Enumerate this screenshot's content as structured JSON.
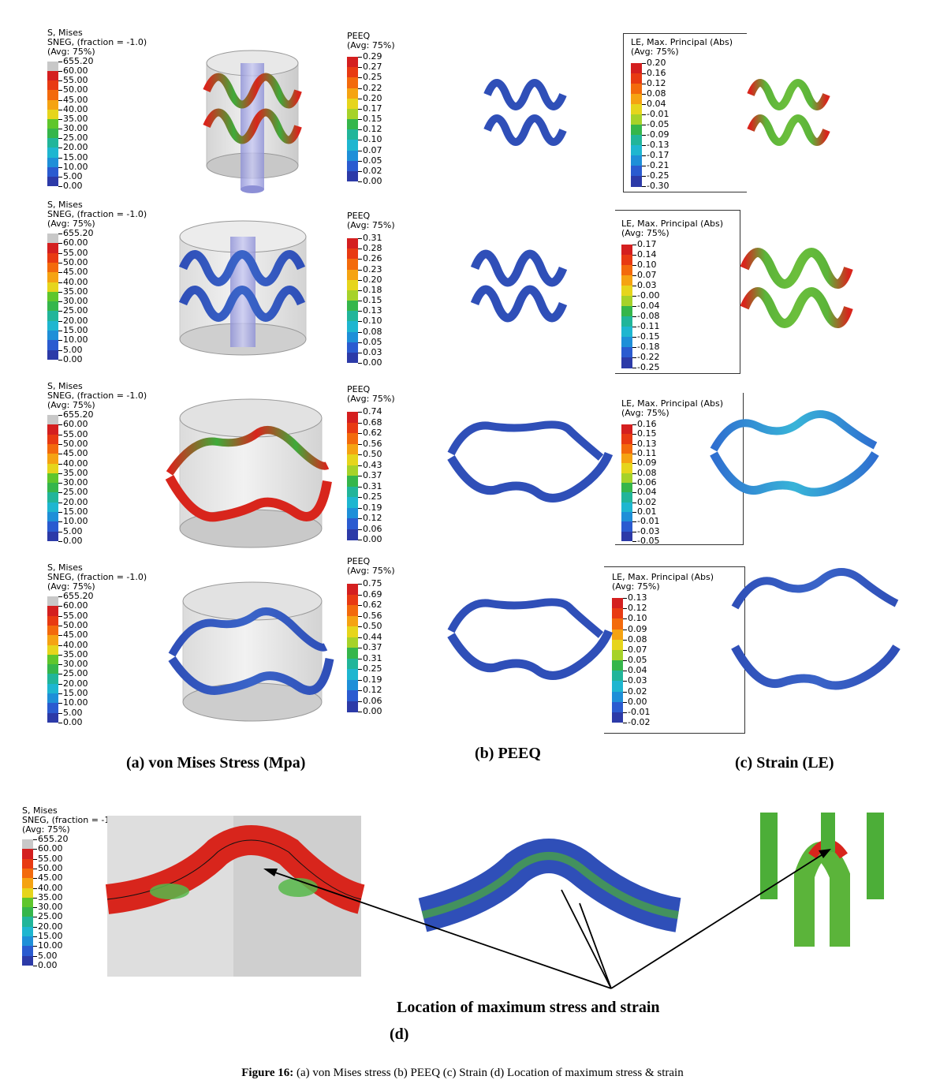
{
  "legend_mises": {
    "title_lines": [
      "S, Mises",
      "SNEG, (fraction = -1.0)",
      "(Avg: 75%)"
    ],
    "values": [
      "655.20",
      "60.00",
      "55.00",
      "50.00",
      "45.00",
      "40.00",
      "35.00",
      "30.00",
      "25.00",
      "20.00",
      "15.00",
      "10.00",
      "5.00",
      "0.00"
    ]
  },
  "legend_peeq": [
    {
      "title_lines": [
        "PEEQ",
        "(Avg: 75%)"
      ],
      "values": [
        "0.29",
        "0.27",
        "0.25",
        "0.22",
        "0.20",
        "0.17",
        "0.15",
        "0.12",
        "0.10",
        "0.07",
        "0.05",
        "0.02",
        "0.00"
      ]
    },
    {
      "title_lines": [
        "PEEQ",
        "(Avg: 75%)"
      ],
      "values": [
        "0.31",
        "0.28",
        "0.26",
        "0.23",
        "0.20",
        "0.18",
        "0.15",
        "0.13",
        "0.10",
        "0.08",
        "0.05",
        "0.03",
        "0.00"
      ]
    },
    {
      "title_lines": [
        "PEEQ",
        "(Avg: 75%)"
      ],
      "values": [
        "0.74",
        "0.68",
        "0.62",
        "0.56",
        "0.50",
        "0.43",
        "0.37",
        "0.31",
        "0.25",
        "0.19",
        "0.12",
        "0.06",
        "0.00"
      ]
    },
    {
      "title_lines": [
        "PEEQ",
        "(Avg: 75%)"
      ],
      "values": [
        "0.75",
        "0.69",
        "0.62",
        "0.56",
        "0.50",
        "0.44",
        "0.37",
        "0.31",
        "0.25",
        "0.19",
        "0.12",
        "0.06",
        "0.00"
      ]
    }
  ],
  "legend_le": [
    {
      "title_lines": [
        "LE, Max. Principal (Abs)",
        "(Avg: 75%)"
      ],
      "values": [
        "0.20",
        "0.16",
        "0.12",
        "0.08",
        "0.04",
        "-0.01",
        "-0.05",
        "-0.09",
        "-0.13",
        "-0.17",
        "-0.21",
        "-0.25",
        "-0.30"
      ]
    },
    {
      "title_lines": [
        "LE, Max. Principal (Abs)",
        "(Avg: 75%)"
      ],
      "values": [
        "0.17",
        "0.14",
        "0.10",
        "0.07",
        "0.03",
        "-0.00",
        "-0.04",
        "-0.08",
        "-0.11",
        "-0.15",
        "-0.18",
        "-0.22",
        "-0.25"
      ]
    },
    {
      "title_lines": [
        "LE, Max. Principal (Abs)",
        "(Avg: 75%)"
      ],
      "values": [
        "0.16",
        "0.15",
        "0.13",
        "0.11",
        "0.09",
        "0.08",
        "0.06",
        "0.04",
        "0.02",
        "0.01",
        "-0.01",
        "-0.03",
        "-0.05"
      ]
    },
    {
      "title_lines": [
        "LE, Max. Principal (Abs)",
        "(Avg: 75%)"
      ],
      "values": [
        "0.13",
        "0.12",
        "0.10",
        "0.09",
        "0.08",
        "0.07",
        "0.05",
        "0.04",
        "0.03",
        "0.02",
        "0.00",
        "-0.01",
        "-0.02"
      ]
    }
  ],
  "panel_labels": {
    "a": "(a) von Mises Stress (Mpa)",
    "b": "(b) PEEQ",
    "c": "(c) Strain (LE)",
    "d": "(d)",
    "d_annotation": "Location of maximum stress and strain"
  },
  "caption": {
    "label": "Figure 16:",
    "text": " (a) von Mises stress (b) PEEQ (c) Strain (d) Location of maximum stress & strain"
  },
  "colors": {
    "scale": [
      "#d41f1f",
      "#e83a12",
      "#f36a0c",
      "#f5a312",
      "#e6d51c",
      "#a6d229",
      "#5fc62c",
      "#35b64b",
      "#21b59a",
      "#1eb6d0",
      "#1e8fd8",
      "#2a5bd0",
      "#2c3aa8"
    ],
    "top_gray": "#c8c8c8",
    "stent_red": "#d8251c",
    "stent_blue": "#2f4fb8",
    "stent_green": "#4cae38"
  }
}
